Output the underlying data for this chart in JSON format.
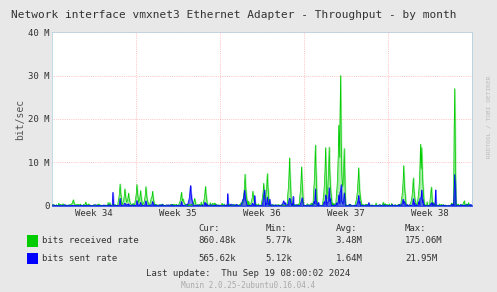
{
  "title": "Network interface vmxnet3 Ethernet Adapter - Throughput - by month",
  "ylabel": "bit/sec",
  "watermark": "RRDTOOL / TOBI OETIKER",
  "munin_version": "Munin 2.0.25-2ubuntu0.16.04.4",
  "last_update": "Last update:  Thu Sep 19 08:00:02 2024",
  "legend_labels": [
    "bits received rate",
    "bits sent rate"
  ],
  "legend_colors": [
    "#00cc00",
    "#0000ff"
  ],
  "xtick_labels": [
    "Week 34",
    "Week 35",
    "Week 36",
    "Week 37",
    "Week 38"
  ],
  "ylim": [
    0,
    40000000
  ],
  "yticks": [
    0,
    10000000,
    20000000,
    30000000,
    40000000
  ],
  "ytick_labels": [
    "0",
    "10 M",
    "20 M",
    "30 M",
    "40 M"
  ],
  "stats": {
    "cur": [
      "860.48k",
      "565.62k"
    ],
    "min": [
      "5.77k",
      "5.12k"
    ],
    "avg": [
      "3.48M",
      "1.64M"
    ],
    "max": [
      "175.06M",
      "21.95M"
    ]
  },
  "bg_color": "#e8e8e8",
  "plot_bg_color": "#ffffff",
  "grid_color": "#ff9999",
  "received_color": "#00cc00",
  "sent_color": "#0000ff",
  "received_fill": "#00cc00",
  "sent_fill": "#0000ff"
}
